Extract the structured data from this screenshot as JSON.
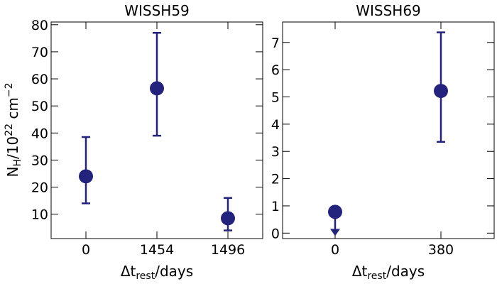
{
  "chart_data": [
    {
      "type": "scatter",
      "title": "WISSH59",
      "xlabel_main": "Δt",
      "xlabel_sub": "rest",
      "xlabel_tail": "/days",
      "ylabel_main": "N",
      "ylabel_sub": "H",
      "ylabel_tail": "/10",
      "ylabel_sup1": "22",
      "ylabel_unit": " cm",
      "ylabel_sup2": "−2",
      "categories": [
        "0",
        "1454",
        "1496"
      ],
      "points": [
        {
          "x": "0",
          "y": 24,
          "err_low": 14,
          "err_high": 38.5,
          "upper_limit": false
        },
        {
          "x": "1454",
          "y": 56.5,
          "err_low": 39,
          "err_high": 77,
          "upper_limit": false
        },
        {
          "x": "1496",
          "y": 8.5,
          "err_low": 4,
          "err_high": 16,
          "upper_limit": false
        }
      ],
      "ylim": [
        1,
        81
      ],
      "yticks": [
        "10",
        "20",
        "30",
        "40",
        "50",
        "60",
        "70",
        "80"
      ],
      "grid": false,
      "color": "#23237e"
    },
    {
      "type": "scatter",
      "title": "WISSH69",
      "xlabel_main": "Δt",
      "xlabel_sub": "rest",
      "xlabel_tail": "/days",
      "categories": [
        "0",
        "380"
      ],
      "points": [
        {
          "x": "0",
          "y": 0.78,
          "upper_limit": true,
          "limit_to": 0
        },
        {
          "x": "380",
          "y": 5.22,
          "err_low": 3.35,
          "err_high": 7.37,
          "upper_limit": false
        }
      ],
      "ylim": [
        -0.2,
        7.75
      ],
      "yticks": [
        "0",
        "1",
        "2",
        "3",
        "4",
        "5",
        "6",
        "7"
      ],
      "grid": false,
      "color": "#23237e"
    }
  ]
}
